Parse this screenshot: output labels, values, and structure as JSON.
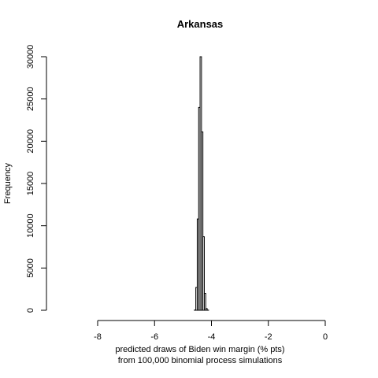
{
  "chart_data": {
    "type": "bar",
    "title": "Arkansas",
    "xlabel": "predicted draws of Biden win margin (% pts)",
    "xlabel2": "from 100,000 binomial process simulations",
    "ylabel": "Frequency",
    "xlim": [
      -8,
      0
    ],
    "ylim": [
      0,
      30000
    ],
    "x_ticks": [
      -8,
      -6,
      -4,
      -2,
      0
    ],
    "y_ticks": [
      0,
      5000,
      10000,
      15000,
      20000,
      25000,
      30000
    ],
    "bin_width": 0.05,
    "bins": [
      {
        "start": -4.6,
        "end": -4.55,
        "count": 30
      },
      {
        "start": -4.55,
        "end": -4.5,
        "count": 2700
      },
      {
        "start": -4.5,
        "end": -4.45,
        "count": 10800
      },
      {
        "start": -4.45,
        "end": -4.4,
        "count": 24000
      },
      {
        "start": -4.4,
        "end": -4.35,
        "count": 30000
      },
      {
        "start": -4.35,
        "end": -4.3,
        "count": 21100
      },
      {
        "start": -4.3,
        "end": -4.25,
        "count": 8700
      },
      {
        "start": -4.25,
        "end": -4.2,
        "count": 2000
      },
      {
        "start": -4.2,
        "end": -4.15,
        "count": 200
      },
      {
        "start": -4.15,
        "end": -4.1,
        "count": 20
      }
    ]
  }
}
